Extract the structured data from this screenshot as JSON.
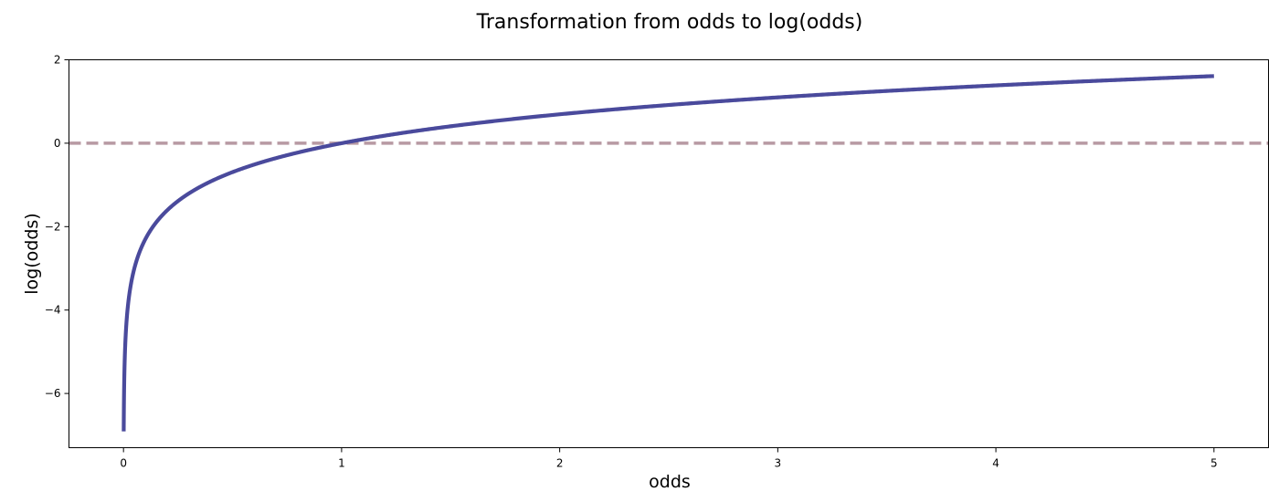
{
  "chart_data": {
    "type": "line",
    "title": "Transformation from odds to log(odds)",
    "xlabel": "odds",
    "ylabel": "log(odds)",
    "xlim": [
      -0.25,
      5.25
    ],
    "ylim": [
      -7.3,
      2.0
    ],
    "x_ticks": [
      0,
      1,
      2,
      3,
      4,
      5
    ],
    "y_ticks": [
      -6,
      -4,
      -2,
      0,
      2
    ],
    "x_tick_labels": [
      "0",
      "1",
      "2",
      "3",
      "4",
      "5"
    ],
    "y_tick_labels": [
      "−6",
      "−4",
      "−2",
      "0",
      "2"
    ],
    "grid": false,
    "series": [
      {
        "function": "ln(x)",
        "x_range": [
          0.001,
          5
        ],
        "color": "#4a4a9c",
        "style": "solid"
      }
    ],
    "reference_lines": [
      {
        "orientation": "horizontal",
        "y": 0,
        "color": "#b89aa3",
        "style": "dashed"
      }
    ]
  }
}
